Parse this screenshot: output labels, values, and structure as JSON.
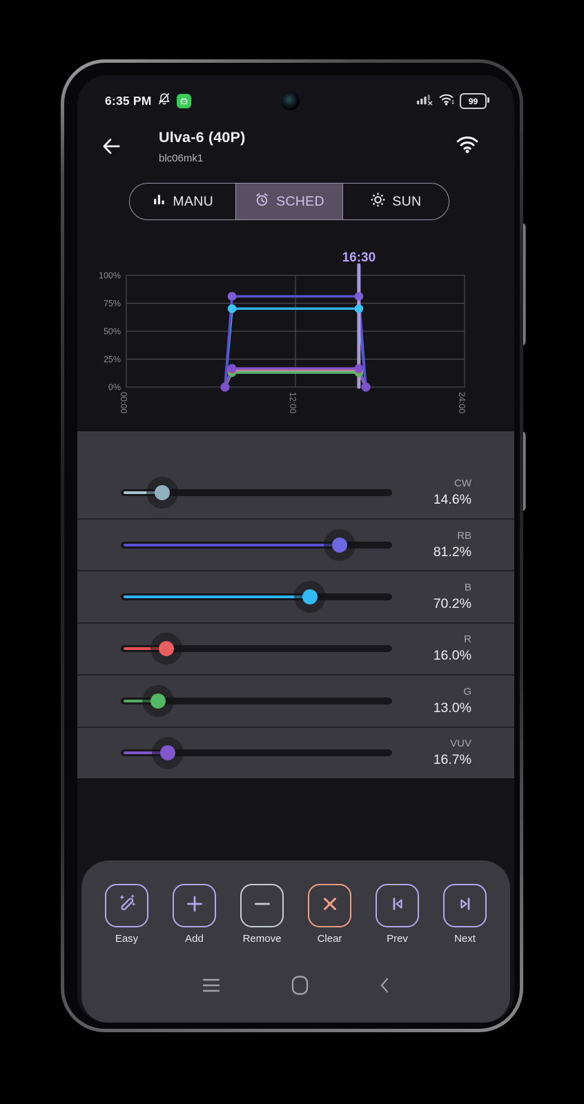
{
  "status_bar": {
    "time": "6:35 PM",
    "battery_percent": "99",
    "left_icons": [
      "mute-icon",
      "app-badge-icon"
    ],
    "right_icons": [
      "cell-signal-off-icon",
      "wifi-icon",
      "battery-icon"
    ]
  },
  "header": {
    "title": "Ulva-6 (40P)",
    "subtitle": "blc06mk1"
  },
  "tabs": [
    {
      "id": "manu",
      "label": "MANU",
      "icon": "bar-chart-icon",
      "selected": false
    },
    {
      "id": "sched",
      "label": "SCHED",
      "icon": "alarm-icon",
      "selected": true
    },
    {
      "id": "sun",
      "label": "SUN",
      "icon": "sun-icon",
      "selected": false
    }
  ],
  "chart_data": {
    "type": "line",
    "title": "",
    "xlabel": "",
    "ylabel": "",
    "x_unit": "time-of-day",
    "x_range_hours": [
      0,
      24
    ],
    "ylim": [
      0,
      100
    ],
    "x_ticks": [
      "00:00",
      "12:00",
      "24:00"
    ],
    "x_tick_hours": [
      0,
      12,
      24
    ],
    "y_ticks": [
      "100%",
      "75%",
      "50%",
      "25%",
      "0%"
    ],
    "y_tick_values": [
      100,
      75,
      50,
      25,
      0
    ],
    "grid": true,
    "cursor": {
      "label": "16:30",
      "hour": 16.5,
      "color": "#b2a1e6",
      "label_color": "#b6a5f6"
    },
    "schedule_shape": "ramp up 07:00-07:30, hold, ramp down 16:30-17:00",
    "series": [
      {
        "name": "CW",
        "peak_percent": 14.6,
        "color": "#93a9b5",
        "dot": "#93a9b5",
        "points": [
          [
            7,
            0
          ],
          [
            7.5,
            14.6
          ],
          [
            16.5,
            14.6
          ],
          [
            17,
            0
          ]
        ]
      },
      {
        "name": "G",
        "peak_percent": 13.0,
        "color": "#5db269",
        "dot": "#5db269",
        "points": [
          [
            7,
            0
          ],
          [
            7.5,
            13.0
          ],
          [
            16.5,
            13.0
          ],
          [
            17,
            0
          ]
        ]
      },
      {
        "name": "R",
        "peak_percent": 16.0,
        "color": "#e2606e",
        "dot": "#e2606e",
        "points": [
          [
            7,
            0
          ],
          [
            7.5,
            16.0
          ],
          [
            16.5,
            16.0
          ],
          [
            17,
            0
          ]
        ]
      },
      {
        "name": "B",
        "peak_percent": 70.2,
        "color": "#33b3f2",
        "dot": "#3cc1f8",
        "points": [
          [
            7,
            0
          ],
          [
            7.5,
            70.2
          ],
          [
            16.5,
            70.2
          ],
          [
            17,
            0
          ]
        ]
      },
      {
        "name": "RB",
        "peak_percent": 81.2,
        "color": "#5a50cf",
        "dot": "#7a5fd8",
        "points": [
          [
            7,
            0
          ],
          [
            7.5,
            81.2
          ],
          [
            16.5,
            81.2
          ],
          [
            17,
            0
          ]
        ]
      },
      {
        "name": "VUV",
        "peak_percent": 16.7,
        "color": "#7e57c2",
        "dot": "#7d50d0",
        "points": [
          [
            7,
            0
          ],
          [
            7.5,
            16.7
          ],
          [
            16.5,
            16.7
          ],
          [
            17,
            0
          ]
        ]
      }
    ]
  },
  "sliders": {
    "channels": [
      {
        "id": "cw",
        "label": "CW",
        "value_percent": 14.6,
        "display": "14.6%",
        "track_color": "#a9c3cd",
        "thumb_color": "#8fb0bc"
      },
      {
        "id": "rb",
        "label": "RB",
        "value_percent": 81.2,
        "display": "81.2%",
        "track_color": "#5b52d6",
        "thumb_color": "#6f66e2"
      },
      {
        "id": "b",
        "label": "B",
        "value_percent": 70.2,
        "display": "70.2%",
        "track_color": "#2bb2f2",
        "thumb_color": "#33bbf6"
      },
      {
        "id": "r",
        "label": "R",
        "value_percent": 16.0,
        "display": "16.0%",
        "track_color": "#e45353",
        "thumb_color": "#e85f5f"
      },
      {
        "id": "g",
        "label": "G",
        "value_percent": 13.0,
        "display": "13.0%",
        "track_color": "#4fae60",
        "thumb_color": "#53b766"
      },
      {
        "id": "vuv",
        "label": "VUV",
        "value_percent": 16.7,
        "display": "16.7%",
        "track_color": "#7e57c8",
        "thumb_color": "#8157cd"
      }
    ]
  },
  "toolbar": {
    "buttons": [
      {
        "id": "easy",
        "label": "Easy",
        "icon": "wand-icon",
        "accent": "#b5a7ee"
      },
      {
        "id": "add",
        "label": "Add",
        "icon": "plus-icon",
        "accent": "#b5a7ee"
      },
      {
        "id": "remove",
        "label": "Remove",
        "icon": "minus-icon",
        "accent": "#c9ccd2"
      },
      {
        "id": "clear",
        "label": "Clear",
        "icon": "x-icon",
        "accent": "#f29e87"
      },
      {
        "id": "prev",
        "label": "Prev",
        "icon": "skip-prev-icon",
        "accent": "#b5a7ee"
      },
      {
        "id": "next",
        "label": "Next",
        "icon": "skip-next-icon",
        "accent": "#b5a7ee"
      }
    ]
  },
  "nav_bar": {
    "items": [
      "recents",
      "home",
      "back"
    ]
  },
  "colors": {
    "screen_bg": "#141318",
    "panel_bg": "#3a393f",
    "toolbar_bg": "#3b3a41",
    "selected_tab_bg": "#584f63",
    "grid_stroke": "#4a4a4f",
    "axis_text": "#8e8e94"
  }
}
